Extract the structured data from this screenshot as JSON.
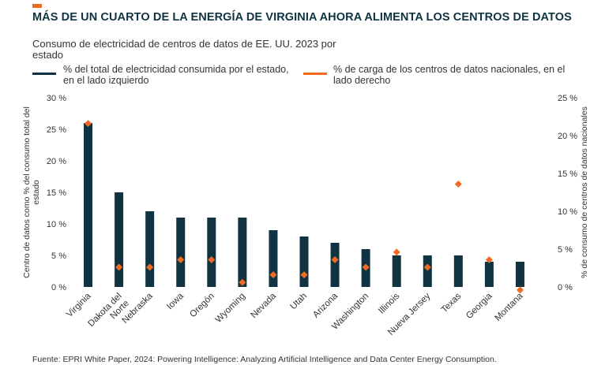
{
  "header": {
    "title": "MÁS DE UN CUARTO DE LA ENERGÍA DE VIRGINIA AHORA ALIMENTA LOS CENTROS DE DATOS",
    "subtitle": "Consumo de electricidad de centros de datos de EE. UU. 2023 por estado",
    "accent_color": "#f26a21"
  },
  "legend": {
    "bar_label": "% del total de electricidad consumida por el estado, en el lado izquierdo",
    "marker_label": "% de carga de los centros de datos nacionales, en el lado derecho"
  },
  "source": "Fuente: EPRI White Paper, 2024: Powering Intelligence: Analyzing Artificial Intelligence and Data Center Energy Consumption.",
  "chart_data": {
    "type": "bar",
    "categories": [
      "Virginia",
      "Dakota del Norte",
      "Nebraska",
      "Iowa",
      "Oregón",
      "Wyoming",
      "Nevada",
      "Utah",
      "Arizona",
      "Washington",
      "Illinois",
      "Nueva Jersey",
      "Texas",
      "Georgia",
      "Montana"
    ],
    "series": [
      {
        "name": "% del total de electricidad consumida por el estado, en el lado izquierdo",
        "chart": "bar",
        "axis": "left",
        "color": "#0f3340",
        "values": [
          26,
          15,
          12,
          11,
          11,
          11,
          9,
          8,
          7,
          6,
          5,
          5,
          5,
          4,
          4
        ]
      },
      {
        "name": "% de carga de los centros de datos nacionales, en el lado derecho",
        "chart": "scatter",
        "marker": "diamond",
        "axis": "right",
        "color": "#f26a21",
        "values": [
          21.6,
          2.6,
          2.6,
          3.6,
          3.6,
          0.6,
          1.6,
          1.6,
          3.6,
          2.6,
          4.6,
          2.6,
          13.6,
          3.6,
          -0.4
        ]
      }
    ],
    "y_left": {
      "label": "Centro de datos como % del consumo total del estado",
      "ticks": [
        "0 %",
        "5 %",
        "10 %",
        "15 %",
        "20 %",
        "25 %",
        "30 %"
      ],
      "ylim": [
        0,
        30
      ]
    },
    "y_right": {
      "label": "% de consumo de centros de datos nacionales",
      "ticks": [
        "0 %",
        "5 %",
        "10 %",
        "15 %",
        "20 %",
        "25 %"
      ],
      "ylim": [
        0,
        25
      ]
    },
    "grid": false,
    "legend_position": "top"
  }
}
